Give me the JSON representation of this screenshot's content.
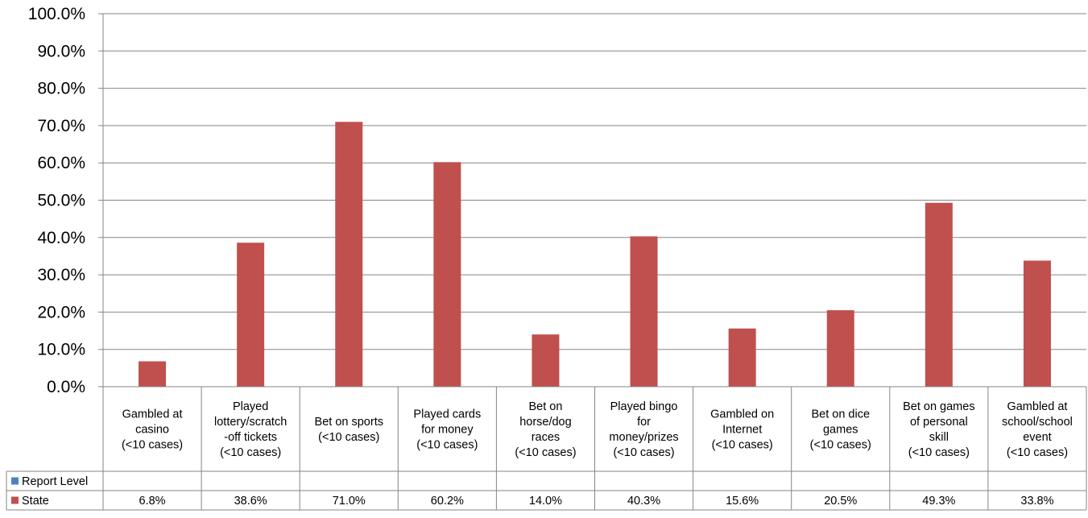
{
  "chart_data": {
    "type": "bar",
    "categories": [
      "Gambled at casino (<10 cases)",
      "Played lottery/scratch -off tickets (<10 cases)",
      "Bet on sports (<10 cases)",
      "Played cards for money (<10 cases)",
      "Bet on horse/dog races (<10 cases)",
      "Played bingo for money/prizes (<10 cases)",
      "Gambled on Internet (<10 cases)",
      "Bet on dice games (<10 cases)",
      "Bet on games of personal skill (<10 cases)",
      "Gambled at school/school event (<10 cases)"
    ],
    "category_lines": [
      [
        "Gambled at",
        "casino",
        "(<10 cases)"
      ],
      [
        "Played",
        "lottery/scratch",
        "-off tickets",
        "(<10 cases)"
      ],
      [
        "Bet on sports",
        "(<10 cases)"
      ],
      [
        "Played cards",
        "for money",
        "(<10 cases)"
      ],
      [
        "Bet on",
        "horse/dog",
        "races",
        "(<10 cases)"
      ],
      [
        "Played bingo",
        "for",
        "money/prizes",
        "(<10 cases)"
      ],
      [
        "Gambled on",
        "Internet",
        "(<10 cases)"
      ],
      [
        "Bet on dice",
        "games",
        "(<10 cases)"
      ],
      [
        "Bet on games",
        "of personal",
        "skill",
        "(<10 cases)"
      ],
      [
        "Gambled at",
        "school/school",
        "event",
        "(<10 cases)"
      ]
    ],
    "series": [
      {
        "name": "Report Level",
        "color": "#4f81bd",
        "values": [
          null,
          null,
          null,
          null,
          null,
          null,
          null,
          null,
          null,
          null
        ],
        "labels": [
          "",
          "",
          "",
          "",
          "",
          "",
          "",
          "",
          "",
          ""
        ]
      },
      {
        "name": "State",
        "color": "#c0504d",
        "values": [
          6.8,
          38.6,
          71.0,
          60.2,
          14.0,
          40.3,
          15.6,
          20.5,
          49.3,
          33.8
        ],
        "labels": [
          "6.8%",
          "38.6%",
          "71.0%",
          "60.2%",
          "14.0%",
          "40.3%",
          "15.6%",
          "20.5%",
          "49.3%",
          "33.8%"
        ]
      }
    ],
    "ylim": [
      0,
      100
    ],
    "y_ticks": [
      "0.0%",
      "10.0%",
      "20.0%",
      "30.0%",
      "40.0%",
      "50.0%",
      "60.0%",
      "70.0%",
      "80.0%",
      "90.0%",
      "100.0%"
    ],
    "grid": true,
    "legend": "data-table",
    "title": "",
    "xlabel": "",
    "ylabel": ""
  }
}
